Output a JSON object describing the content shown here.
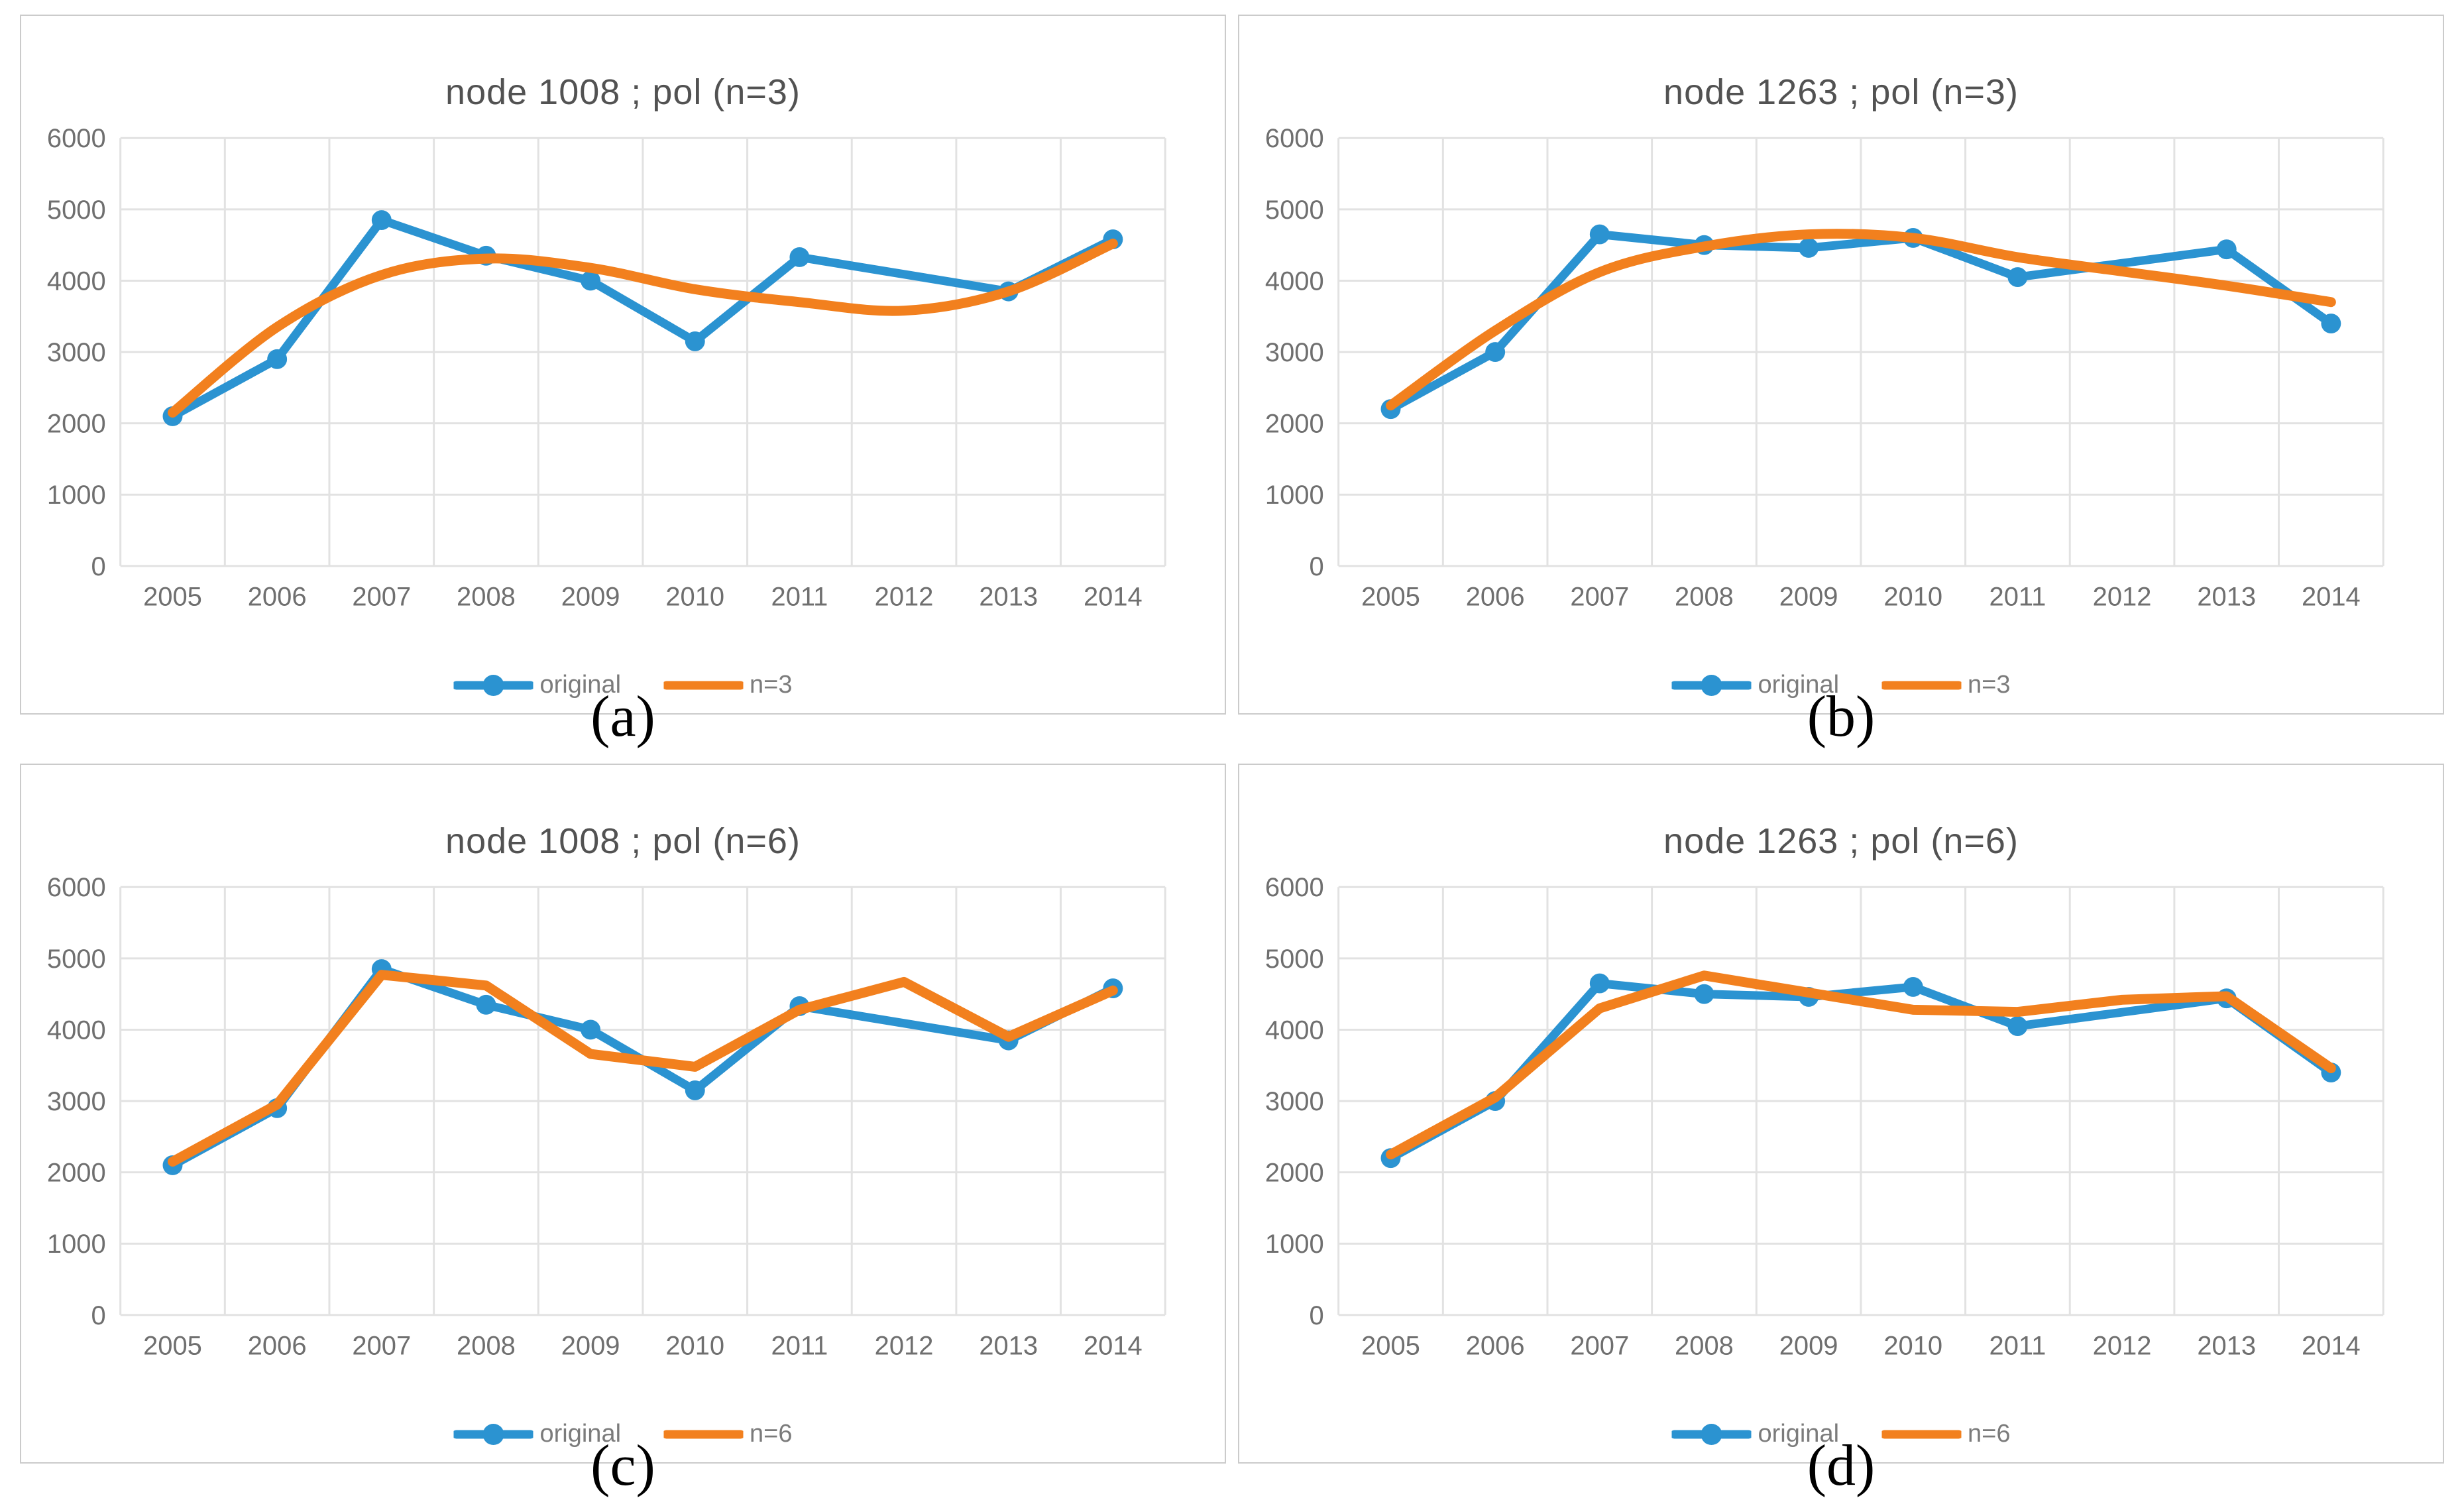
{
  "figure": {
    "background": "#ffffff",
    "description_layout": "2x2 grid of Excel-style line charts with captions below each panel"
  },
  "colors": {
    "original_blue": "#2B93D1",
    "fit_orange": "#F2801E",
    "gridline": "#E2E2E2",
    "panel_border": "#CBCBCB",
    "tick_text": "#6F6F6F",
    "title_text": "#525252",
    "legend_text": "#7B7B7B",
    "caption_text": "#000000"
  },
  "chart_data": [
    {
      "type": "line",
      "title": "node 1008 ; pol (n=3)",
      "caption": "(a)",
      "x": [
        2005,
        2006,
        2007,
        2008,
        2009,
        2010,
        2011,
        2012,
        2013,
        2014
      ],
      "xlabel": "",
      "ylabel": "",
      "ylim": [
        0,
        6000
      ],
      "yticks": [
        0,
        1000,
        2000,
        3000,
        4000,
        5000,
        6000
      ],
      "grid": true,
      "legend_position": "bottom-center",
      "series": [
        {
          "name": "original",
          "color": "#2B93D1",
          "marker": "circle",
          "smooth": false,
          "values": [
            2100,
            2900,
            4850,
            4350,
            4000,
            3150,
            4330,
            null,
            3850,
            4580
          ]
        },
        {
          "name": "n=3",
          "color": "#F2801E",
          "marker": "none",
          "smooth": true,
          "values": [
            2150,
            3350,
            4080,
            4310,
            4180,
            3880,
            3700,
            3580,
            3850,
            4520
          ]
        }
      ]
    },
    {
      "type": "line",
      "title": "node 1263 ; pol (n=3)",
      "caption": "(b)",
      "x": [
        2005,
        2006,
        2007,
        2008,
        2009,
        2010,
        2011,
        2012,
        2013,
        2014
      ],
      "xlabel": "",
      "ylabel": "",
      "ylim": [
        0,
        6000
      ],
      "yticks": [
        0,
        1000,
        2000,
        3000,
        4000,
        5000,
        6000
      ],
      "grid": true,
      "legend_position": "bottom-center",
      "series": [
        {
          "name": "original",
          "color": "#2B93D1",
          "marker": "circle",
          "smooth": false,
          "values": [
            2200,
            3000,
            4650,
            4500,
            4460,
            4600,
            4050,
            null,
            4440,
            3400
          ]
        },
        {
          "name": "n=3",
          "color": "#F2801E",
          "marker": "none",
          "smooth": true,
          "values": [
            2250,
            3300,
            4120,
            4480,
            4650,
            4600,
            4330,
            4130,
            3930,
            3700
          ]
        }
      ]
    },
    {
      "type": "line",
      "title": "node 1008 ; pol (n=6)",
      "caption": "(c)",
      "x": [
        2005,
        2006,
        2007,
        2008,
        2009,
        2010,
        2011,
        2012,
        2013,
        2014
      ],
      "xlabel": "",
      "ylabel": "",
      "ylim": [
        0,
        6000
      ],
      "yticks": [
        0,
        1000,
        2000,
        3000,
        4000,
        5000,
        6000
      ],
      "grid": true,
      "legend_position": "bottom-center",
      "series": [
        {
          "name": "original",
          "color": "#2B93D1",
          "marker": "circle",
          "smooth": false,
          "values": [
            2100,
            2900,
            4850,
            4350,
            4000,
            3150,
            4330,
            null,
            3850,
            4580
          ]
        },
        {
          "name": "n=6",
          "color": "#F2801E",
          "marker": "none",
          "smooth": false,
          "values": [
            2150,
            2950,
            4770,
            4620,
            3660,
            3480,
            4280,
            4670,
            3900,
            4550
          ]
        }
      ]
    },
    {
      "type": "line",
      "title": "node 1263 ; pol (n=6)",
      "caption": "(d)",
      "x": [
        2005,
        2006,
        2007,
        2008,
        2009,
        2010,
        2011,
        2012,
        2013,
        2014
      ],
      "xlabel": "",
      "ylabel": "",
      "ylim": [
        0,
        6000
      ],
      "yticks": [
        0,
        1000,
        2000,
        3000,
        4000,
        5000,
        6000
      ],
      "grid": true,
      "legend_position": "bottom-center",
      "series": [
        {
          "name": "original",
          "color": "#2B93D1",
          "marker": "circle",
          "smooth": false,
          "values": [
            2200,
            3000,
            4650,
            4500,
            4460,
            4600,
            4050,
            null,
            4440,
            3400
          ]
        },
        {
          "name": "n=6",
          "color": "#F2801E",
          "marker": "none",
          "smooth": false,
          "values": [
            2250,
            3050,
            4300,
            4760,
            4520,
            4280,
            4250,
            4420,
            4470,
            3460
          ]
        }
      ]
    }
  ]
}
